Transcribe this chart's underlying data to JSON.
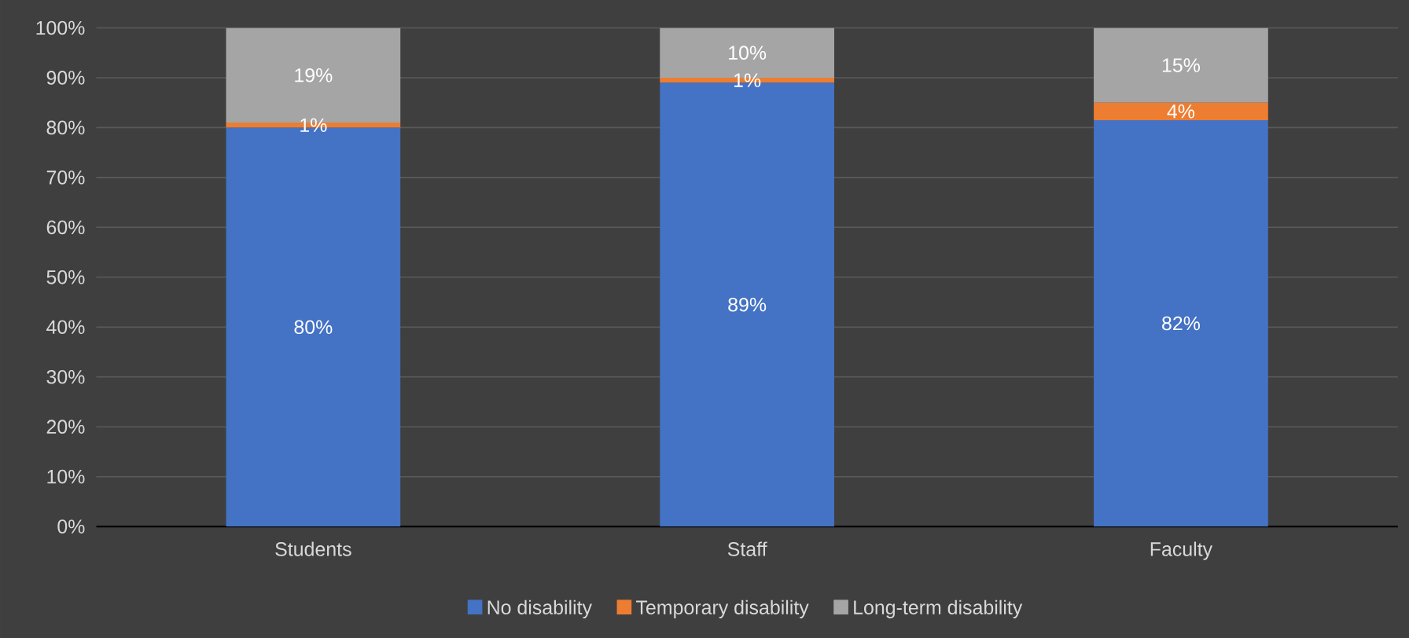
{
  "chart_data": {
    "type": "bar",
    "stacked": true,
    "categories": [
      "Students",
      "Staff",
      "Faculty"
    ],
    "series": [
      {
        "name": "No disability",
        "color": "#4472c4",
        "values": [
          80,
          89,
          81.5
        ],
        "value_labels": [
          "80%",
          "89%",
          "82%"
        ]
      },
      {
        "name": "Temporary disability",
        "color": "#ed7d31",
        "values": [
          1,
          1,
          3.5
        ],
        "value_labels": [
          "1%",
          "1%",
          "4%"
        ]
      },
      {
        "name": "Long-term disability",
        "color": "#a5a5a5",
        "values": [
          19,
          10,
          15
        ],
        "value_labels": [
          "19%",
          "10%",
          "15%"
        ]
      }
    ],
    "ylim": [
      0,
      100
    ],
    "yticks": [
      {
        "value": 0,
        "label": "0%"
      },
      {
        "value": 10,
        "label": "10%"
      },
      {
        "value": 20,
        "label": "20%"
      },
      {
        "value": 30,
        "label": "30%"
      },
      {
        "value": 40,
        "label": "40%"
      },
      {
        "value": 50,
        "label": "50%"
      },
      {
        "value": 60,
        "label": "60%"
      },
      {
        "value": 70,
        "label": "70%"
      },
      {
        "value": 80,
        "label": "80%"
      },
      {
        "value": 90,
        "label": "90%"
      },
      {
        "value": 100,
        "label": "100%"
      }
    ],
    "grid": "y",
    "legend": "bottom"
  }
}
